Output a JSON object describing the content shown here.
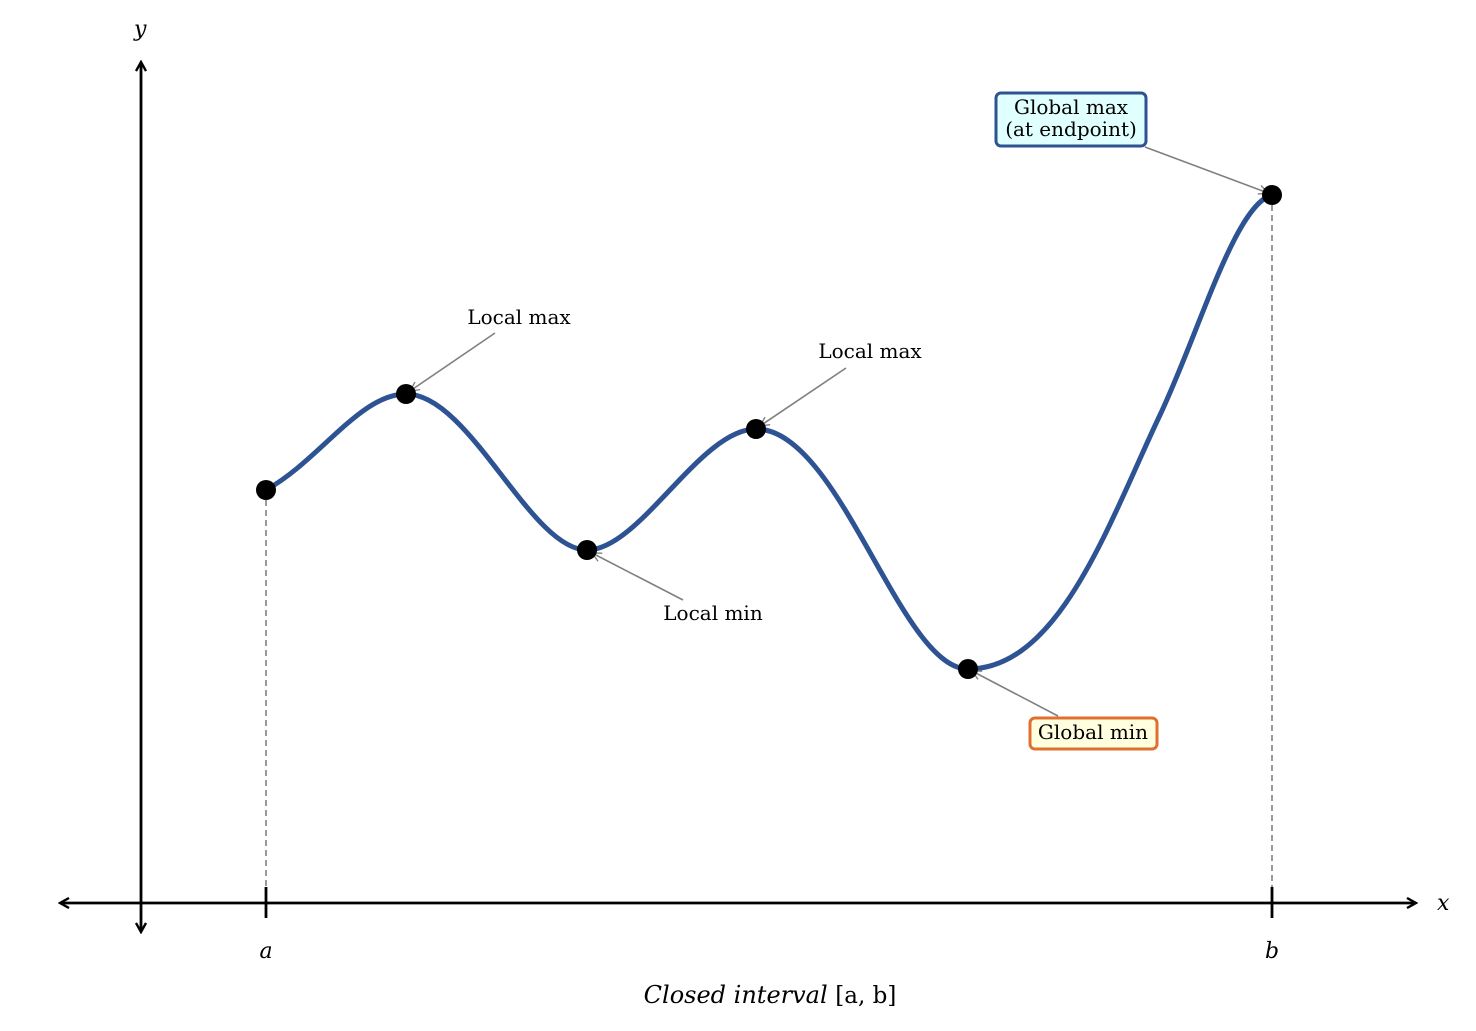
{
  "diagram": {
    "axes": {
      "x_label": "x",
      "y_label": "y"
    },
    "interval": {
      "a_label": "a",
      "b_label": "b",
      "caption_text": "Closed interval ",
      "caption_math": "[a, b]"
    },
    "points": [
      {
        "name": "endpoint-a",
        "label": ""
      },
      {
        "name": "local-max-1",
        "label": "Local max"
      },
      {
        "name": "local-min",
        "label": "Local min"
      },
      {
        "name": "local-max-2",
        "label": "Local max"
      },
      {
        "name": "global-min",
        "label": "Global min"
      },
      {
        "name": "global-max",
        "label_line1": "Global max",
        "label_line2": "(at endpoint)"
      }
    ],
    "colors": {
      "curve": "#2e5393",
      "points": "#000000",
      "arrow": "#808080",
      "global_max_box_border": "#2e5393",
      "global_max_box_fill": "#e0ffff",
      "global_min_box_border": "#e07030",
      "global_min_box_fill": "#ffffe0"
    }
  }
}
